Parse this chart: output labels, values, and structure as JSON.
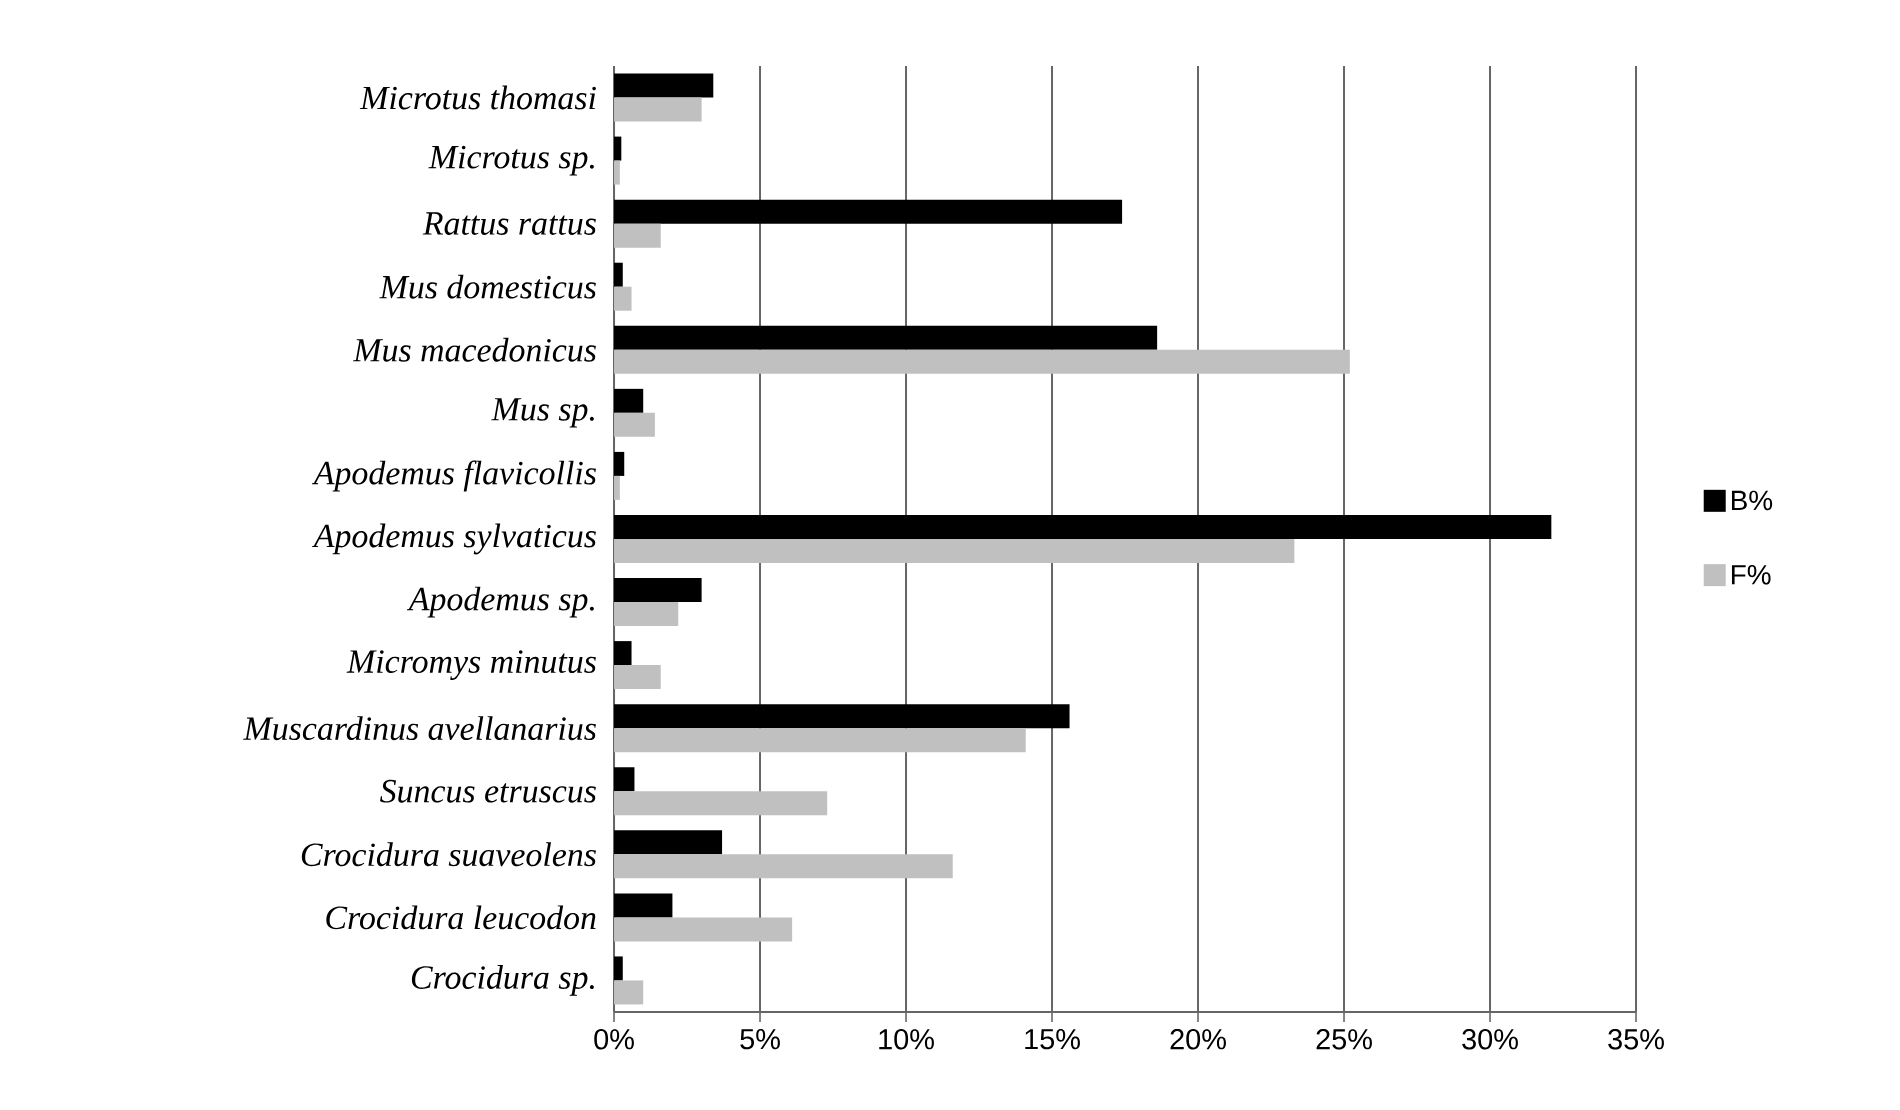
{
  "chart_data": {
    "type": "bar",
    "orientation": "horizontal",
    "categories": [
      "Microtus thomasi",
      "Microtus sp.",
      "Rattus rattus",
      "Mus domesticus",
      "Mus macedonicus",
      "Mus sp.",
      "Apodemus flavicollis",
      "Apodemus sylvaticus",
      "Apodemus sp.",
      "Micromys minutus",
      "Muscardinus avellanarius",
      "Suncus etruscus",
      "Crocidura suaveolens",
      "Crocidura leucodon",
      "Crocidura sp."
    ],
    "series": [
      {
        "name": "B%",
        "color": "#000000",
        "values": [
          3.4,
          0.25,
          17.4,
          0.3,
          18.6,
          1.0,
          0.35,
          32.1,
          3.0,
          0.6,
          15.6,
          0.7,
          3.7,
          2.0,
          0.3
        ]
      },
      {
        "name": "F%",
        "color": "#c0c0c0",
        "values": [
          3.0,
          0.2,
          1.6,
          0.6,
          25.2,
          1.4,
          0.2,
          23.3,
          2.2,
          1.6,
          14.1,
          7.3,
          11.6,
          6.1,
          1.0
        ]
      }
    ],
    "xlim": [
      0,
      35
    ],
    "xticks": [
      {
        "value": 0,
        "label": "0%"
      },
      {
        "value": 5,
        "label": "5%"
      },
      {
        "value": 10,
        "label": "10%"
      },
      {
        "value": 15,
        "label": "15%"
      },
      {
        "value": 20,
        "label": "20%"
      },
      {
        "value": 25,
        "label": "25%"
      },
      {
        "value": 30,
        "label": "30%"
      },
      {
        "value": 35,
        "label": "35%"
      }
    ],
    "grid": "x",
    "legend": "right"
  }
}
